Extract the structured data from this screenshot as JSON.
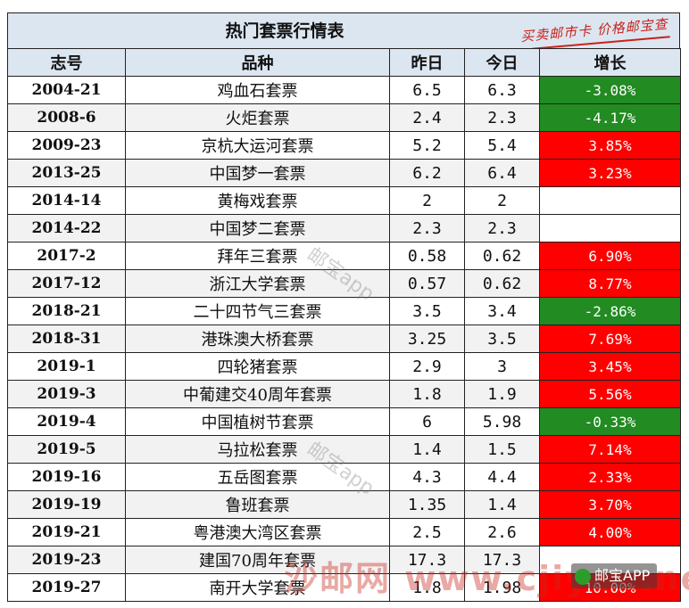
{
  "title": "热门套票行情表",
  "stamp": "买卖邮市卡 价格邮宝查",
  "columns": [
    "志号",
    "品种",
    "昨日",
    "今日",
    "增长"
  ],
  "colors": {
    "header_bg": "#dce6f1",
    "up": "#ff0000",
    "down": "#228b22"
  },
  "rows": [
    {
      "code": "2004-21",
      "name": "鸡血石套票",
      "yesterday": "6.5",
      "today": "6.3",
      "change": "-3.08%",
      "dir": "down"
    },
    {
      "code": "2008-6",
      "name": "火炬套票",
      "yesterday": "2.4",
      "today": "2.3",
      "change": "-4.17%",
      "dir": "down"
    },
    {
      "code": "2009-23",
      "name": "京杭大运河套票",
      "yesterday": "5.2",
      "today": "5.4",
      "change": "3.85%",
      "dir": "up"
    },
    {
      "code": "2013-25",
      "name": "中国梦一套票",
      "yesterday": "6.2",
      "today": "6.4",
      "change": "3.23%",
      "dir": "up"
    },
    {
      "code": "2014-14",
      "name": "黄梅戏套票",
      "yesterday": "2",
      "today": "2",
      "change": "",
      "dir": "none"
    },
    {
      "code": "2014-22",
      "name": "中国梦二套票",
      "yesterday": "2.3",
      "today": "2.3",
      "change": "",
      "dir": "none"
    },
    {
      "code": "2017-2",
      "name": "拜年三套票",
      "yesterday": "0.58",
      "today": "0.62",
      "change": "6.90%",
      "dir": "up"
    },
    {
      "code": "2017-12",
      "name": "浙江大学套票",
      "yesterday": "0.57",
      "today": "0.62",
      "change": "8.77%",
      "dir": "up"
    },
    {
      "code": "2018-21",
      "name": "二十四节气三套票",
      "yesterday": "3.5",
      "today": "3.4",
      "change": "-2.86%",
      "dir": "down"
    },
    {
      "code": "2018-31",
      "name": "港珠澳大桥套票",
      "yesterday": "3.25",
      "today": "3.5",
      "change": "7.69%",
      "dir": "up"
    },
    {
      "code": "2019-1",
      "name": "四轮猪套票",
      "yesterday": "2.9",
      "today": "3",
      "change": "3.45%",
      "dir": "up"
    },
    {
      "code": "2019-3",
      "name": "中葡建交40周年套票",
      "yesterday": "1.8",
      "today": "1.9",
      "change": "5.56%",
      "dir": "up"
    },
    {
      "code": "2019-4",
      "name": "中国植树节套票",
      "yesterday": "6",
      "today": "5.98",
      "change": "-0.33%",
      "dir": "down"
    },
    {
      "code": "2019-5",
      "name": "马拉松套票",
      "yesterday": "1.4",
      "today": "1.5",
      "change": "7.14%",
      "dir": "up"
    },
    {
      "code": "2019-16",
      "name": "五岳图套票",
      "yesterday": "4.3",
      "today": "4.4",
      "change": "2.33%",
      "dir": "up"
    },
    {
      "code": "2019-19",
      "name": "鲁班套票",
      "yesterday": "1.35",
      "today": "1.4",
      "change": "3.70%",
      "dir": "up"
    },
    {
      "code": "2019-21",
      "name": "粤港澳大湾区套票",
      "yesterday": "2.5",
      "today": "2.6",
      "change": "4.00%",
      "dir": "up"
    },
    {
      "code": "2019-23",
      "name": "建国70周年套票",
      "yesterday": "17.3",
      "today": "17.3",
      "change": "",
      "dir": "none"
    },
    {
      "code": "2019-27",
      "name": "南开大学套票",
      "yesterday": "1.8",
      "today": "1.98",
      "change": "10.00%",
      "dir": "up"
    }
  ],
  "watermarks": {
    "mid": "邮宝app",
    "bottom": "沙邮网 www.cjiyou.net",
    "badge": "邮宝APP"
  }
}
